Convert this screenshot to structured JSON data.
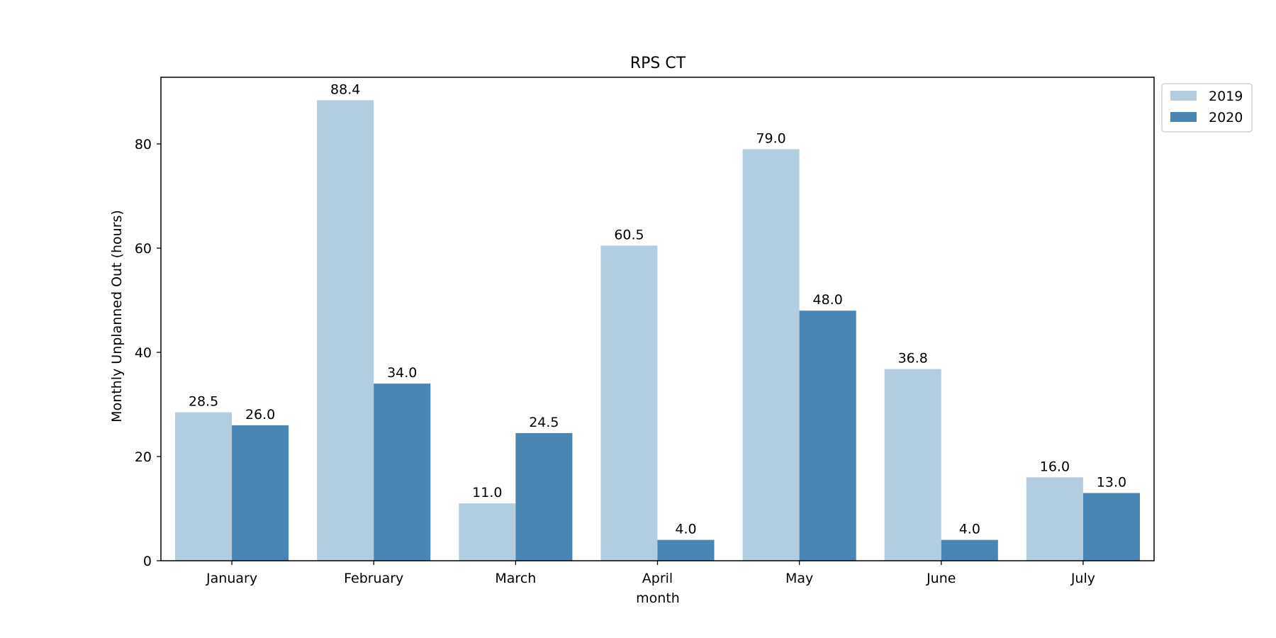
{
  "chart_data": {
    "type": "bar",
    "title": "RPS CT",
    "xlabel": "month",
    "ylabel": "Monthly Unplanned Out (hours)",
    "categories": [
      "January",
      "February",
      "March",
      "April",
      "May",
      "June",
      "July"
    ],
    "series": [
      {
        "name": "2019",
        "color": "#b3cde0",
        "values": [
          28.5,
          88.4,
          11.0,
          60.5,
          79.0,
          36.8,
          16.0
        ],
        "labels": [
          "28.5",
          "88.4",
          "11.0",
          "60.5",
          "79.0",
          "36.8",
          "16.0"
        ]
      },
      {
        "name": "2020",
        "color": "#4a86b4",
        "values": [
          26.0,
          34.0,
          24.5,
          4.0,
          48.0,
          4.0,
          13.0
        ],
        "labels": [
          "26.0",
          "34.0",
          "24.5",
          "4.0",
          "48.0",
          "4.0",
          "13.0"
        ]
      }
    ],
    "ylim": [
      0,
      92.8
    ],
    "yticks": [
      0,
      20,
      40,
      60,
      80
    ],
    "grid": false,
    "legend_position": "outside-top-right"
  }
}
